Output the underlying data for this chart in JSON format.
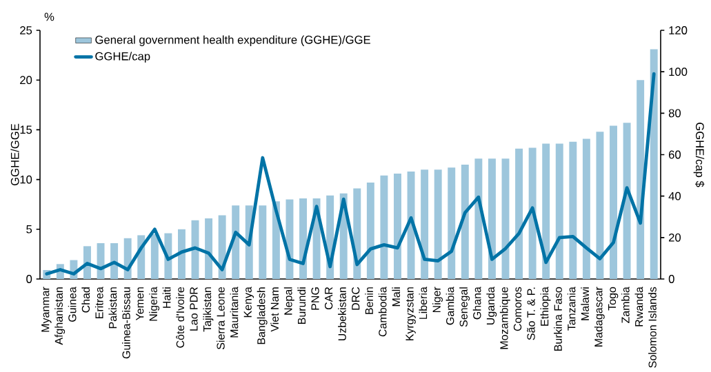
{
  "chart_data": {
    "type": "bar",
    "categories": [
      "Myanmar",
      "Afghanistan",
      "Guinea",
      "Chad",
      "Eritrea",
      "Pakistan",
      "Guinea-Bissau",
      "Yemen",
      "Nigeria",
      "Haiti",
      "Côte d'Ivoire",
      "Lao PDR",
      "Tajikistan",
      "Sierra Leone",
      "Mauritania",
      "Kenya",
      "Bangladesh",
      "Viet Nam",
      "Nepal",
      "Burundi",
      "PNG",
      "CAR",
      "Uzbekistan",
      "DRC",
      "Benin",
      "Cambodia",
      "Mali",
      "Kyrgyzstan",
      "Liberia",
      "Niger",
      "Gambia",
      "Senegal",
      "Ghana",
      "Uganda",
      "Mozambique",
      "Comoros",
      "São T. & P.",
      "Ethiopia",
      "Burkina Faso",
      "Tanzania",
      "Malawi",
      "Madagascar",
      "Togo",
      "Zambia",
      "Rwanda",
      "Solomon Islands"
    ],
    "series": [
      {
        "name": "General government health expenditure (GGHE)/GGE",
        "color": "#9dc6dc",
        "values": [
          0.9,
          1.5,
          1.9,
          3.3,
          3.6,
          3.6,
          4.1,
          4.4,
          4.5,
          4.6,
          5.0,
          5.9,
          6.1,
          6.4,
          7.4,
          7.4,
          7.4,
          7.8,
          8.0,
          8.1,
          8.1,
          8.4,
          8.6,
          9.1,
          9.7,
          10.4,
          10.6,
          10.8,
          11.0,
          11.0,
          11.2,
          11.5,
          12.1,
          12.1,
          12.1,
          13.1,
          13.2,
          13.6,
          13.6,
          13.8,
          14.1,
          14.8,
          15.4,
          15.7,
          20.0,
          23.1
        ]
      },
      {
        "name": "GGHE/cap",
        "type": "line",
        "axis": "y2",
        "color": "#0073a6",
        "values": [
          2.5,
          4.5,
          2.5,
          7.5,
          5,
          8,
          4.5,
          15,
          24,
          9.5,
          13,
          15,
          12.5,
          4.5,
          22.5,
          16.5,
          58.5,
          33,
          9.5,
          7.5,
          35,
          6,
          38.5,
          7,
          14.5,
          16.5,
          15,
          29.5,
          9.5,
          8.8,
          13.4,
          32,
          39.5,
          9.5,
          14.7,
          22,
          34.3,
          8,
          20,
          20.5,
          15,
          9.8,
          17.6,
          44,
          27,
          99
        ]
      }
    ],
    "ylabel": "GGHE/GGE",
    "y2label": "GGHE/cap $",
    "ylim": [
      0,
      25
    ],
    "yticks": [
      0,
      5,
      10,
      15,
      20,
      25
    ],
    "y2lim": [
      0,
      120
    ],
    "y2ticks": [
      0,
      20,
      40,
      60,
      80,
      100,
      120
    ],
    "legend": "top left",
    "annotations": [
      "%"
    ]
  }
}
